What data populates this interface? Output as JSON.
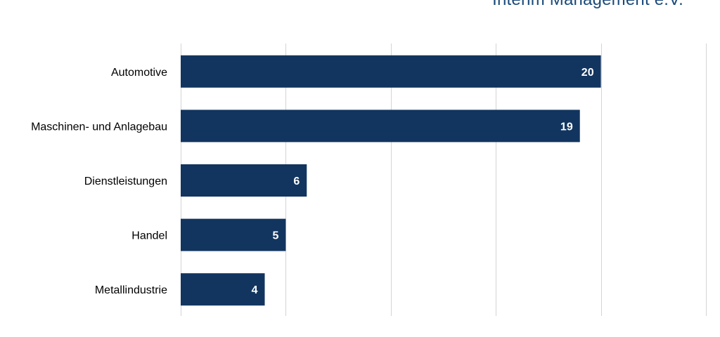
{
  "header": {
    "org_name": "Interim Management e.V."
  },
  "colors": {
    "bar": "#12355f",
    "grid": "#d4d4d4",
    "value_label": "#ffffff"
  },
  "chart_data": {
    "type": "bar",
    "orientation": "horizontal",
    "categories": [
      "Automotive",
      "Maschinen- und Anlagebau",
      "Dienstleistungen",
      "Handel",
      "Metallindustrie"
    ],
    "values": [
      20,
      19,
      6,
      5,
      4
    ],
    "data_labels": [
      "20",
      "19",
      "6",
      "5",
      "4"
    ],
    "xlim": [
      0,
      25
    ],
    "grid": true,
    "legend": "none"
  }
}
